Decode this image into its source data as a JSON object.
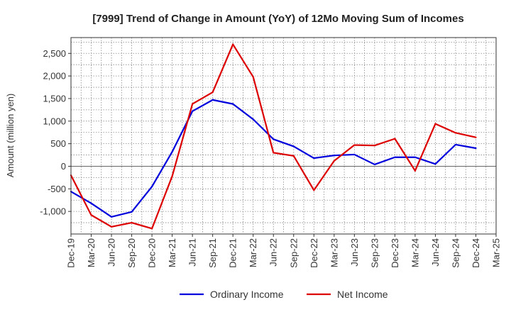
{
  "chart_data": {
    "type": "line",
    "title": "[7999]  Trend of Change in Amount (YoY) of 12Mo Moving Sum of Incomes",
    "xlabel": "",
    "ylabel": "Amount (million yen)",
    "ylim": [
      -1500,
      2850
    ],
    "yticks": [
      -1000,
      -500,
      0,
      500,
      1000,
      1500,
      2000,
      2500
    ],
    "ytick_labels": [
      "-1,000",
      "-500",
      "0",
      "500",
      "1,000",
      "1,500",
      "2,000",
      "2,500"
    ],
    "categories": [
      "Dec-19",
      "Mar-20",
      "Jun-20",
      "Sep-20",
      "Dec-20",
      "Mar-21",
      "Jun-21",
      "Sep-21",
      "Dec-21",
      "Mar-22",
      "Jun-22",
      "Sep-22",
      "Dec-22",
      "Mar-23",
      "Jun-23",
      "Sep-23",
      "Dec-23",
      "Mar-24",
      "Jun-24",
      "Sep-24",
      "Dec-24",
      "Mar-25"
    ],
    "grid": true,
    "legend_position": "bottom",
    "series": [
      {
        "name": "Ordinary Income",
        "color": "#0000dd",
        "values": [
          -560,
          -820,
          -1120,
          -1010,
          -450,
          320,
          1220,
          1470,
          1380,
          1040,
          600,
          440,
          180,
          240,
          260,
          40,
          200,
          200,
          50,
          480,
          400,
          null
        ]
      },
      {
        "name": "Net Income",
        "color": "#dd0000",
        "values": [
          -200,
          -1080,
          -1340,
          -1250,
          -1380,
          -220,
          1380,
          1640,
          2700,
          1980,
          300,
          230,
          -530,
          120,
          470,
          460,
          610,
          -100,
          940,
          740,
          640,
          null
        ]
      }
    ]
  }
}
